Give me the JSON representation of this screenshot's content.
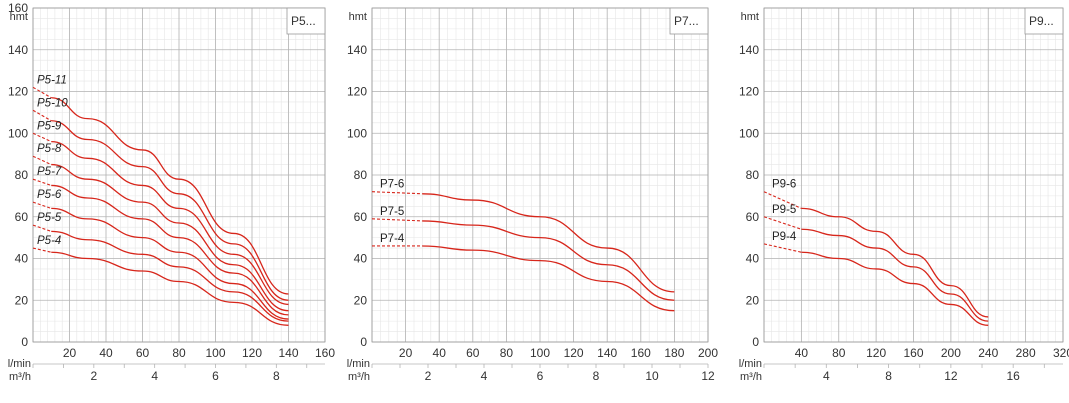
{
  "chart_data": [
    {
      "type": "line",
      "title": "P5...",
      "ylabel": "hmt",
      "ylim": [
        0,
        160
      ],
      "yticks": [
        0,
        20,
        40,
        60,
        80,
        100,
        120,
        140,
        160
      ],
      "x_primary": {
        "label": "l/min",
        "lim": [
          0,
          160
        ],
        "ticks": [
          20,
          40,
          60,
          80,
          100,
          120,
          140,
          160
        ]
      },
      "x_secondary": {
        "label": "m³/h",
        "lim": [
          0,
          9.6
        ],
        "ticks": [
          2,
          4,
          6,
          8
        ]
      },
      "italic_labels": true,
      "series": [
        {
          "name": "P5-11",
          "points": [
            [
              0,
              122
            ],
            [
              10,
              117
            ],
            [
              30,
              107
            ],
            [
              60,
              92
            ],
            [
              80,
              78
            ],
            [
              110,
              52
            ],
            [
              140,
              23
            ]
          ]
        },
        {
          "name": "P5-10",
          "points": [
            [
              0,
              111
            ],
            [
              10,
              106
            ],
            [
              30,
              97
            ],
            [
              60,
              84
            ],
            [
              80,
              71
            ],
            [
              110,
              47
            ],
            [
              140,
              20
            ]
          ]
        },
        {
          "name": "P5-9",
          "points": [
            [
              0,
              100
            ],
            [
              10,
              96
            ],
            [
              30,
              88
            ],
            [
              60,
              75
            ],
            [
              80,
              64
            ],
            [
              110,
              42
            ],
            [
              140,
              18
            ]
          ]
        },
        {
          "name": "P5-8",
          "points": [
            [
              0,
              89
            ],
            [
              10,
              85
            ],
            [
              30,
              78
            ],
            [
              60,
              67
            ],
            [
              80,
              57
            ],
            [
              110,
              37
            ],
            [
              140,
              15
            ]
          ]
        },
        {
          "name": "P5-7",
          "points": [
            [
              0,
              78
            ],
            [
              10,
              75
            ],
            [
              30,
              69
            ],
            [
              60,
              59
            ],
            [
              80,
              50
            ],
            [
              110,
              33
            ],
            [
              140,
              13
            ]
          ]
        },
        {
          "name": "P5-6",
          "points": [
            [
              0,
              67
            ],
            [
              10,
              64
            ],
            [
              30,
              59
            ],
            [
              60,
              50
            ],
            [
              80,
              43
            ],
            [
              110,
              28
            ],
            [
              140,
              11
            ]
          ]
        },
        {
          "name": "P5-5",
          "points": [
            [
              0,
              56
            ],
            [
              10,
              53
            ],
            [
              30,
              49
            ],
            [
              60,
              42
            ],
            [
              80,
              36
            ],
            [
              110,
              24
            ],
            [
              140,
              10
            ]
          ]
        },
        {
          "name": "P5-4",
          "points": [
            [
              0,
              45
            ],
            [
              10,
              43
            ],
            [
              30,
              40
            ],
            [
              60,
              34
            ],
            [
              80,
              29
            ],
            [
              110,
              19
            ],
            [
              140,
              8
            ]
          ]
        }
      ]
    },
    {
      "type": "line",
      "title": "P7...",
      "ylabel": "hmt",
      "ylim": [
        0,
        160
      ],
      "yticks": [
        0,
        20,
        40,
        60,
        80,
        100,
        120,
        140
      ],
      "x_primary": {
        "label": "l/min",
        "lim": [
          0,
          200
        ],
        "ticks": [
          20,
          40,
          60,
          80,
          100,
          120,
          140,
          160,
          180,
          200
        ]
      },
      "x_secondary": {
        "label": "m³/h",
        "lim": [
          0,
          12
        ],
        "ticks": [
          2,
          4,
          6,
          8,
          10,
          12
        ]
      },
      "italic_labels": false,
      "series": [
        {
          "name": "P7-6",
          "points": [
            [
              0,
              72
            ],
            [
              30,
              71
            ],
            [
              60,
              68
            ],
            [
              100,
              60
            ],
            [
              140,
              45
            ],
            [
              180,
              24
            ]
          ]
        },
        {
          "name": "P7-5",
          "points": [
            [
              0,
              59
            ],
            [
              30,
              58
            ],
            [
              60,
              56
            ],
            [
              100,
              50
            ],
            [
              140,
              37
            ],
            [
              180,
              20
            ]
          ]
        },
        {
          "name": "P7-4",
          "points": [
            [
              0,
              46
            ],
            [
              30,
              46
            ],
            [
              60,
              44
            ],
            [
              100,
              39
            ],
            [
              140,
              29
            ],
            [
              180,
              15
            ]
          ]
        }
      ]
    },
    {
      "type": "line",
      "title": "P9...",
      "ylabel": "hmt",
      "ylim": [
        0,
        160
      ],
      "yticks": [
        0,
        20,
        40,
        60,
        80,
        100,
        120,
        140
      ],
      "x_primary": {
        "label": "l/min",
        "lim": [
          0,
          320
        ],
        "ticks": [
          40,
          80,
          120,
          160,
          200,
          240,
          280,
          320
        ]
      },
      "x_secondary": {
        "label": "m³/h",
        "lim": [
          0,
          19.2
        ],
        "ticks": [
          4,
          8,
          12,
          16
        ]
      },
      "italic_labels": false,
      "series": [
        {
          "name": "P9-6",
          "points": [
            [
              0,
              72
            ],
            [
              40,
              64
            ],
            [
              80,
              60
            ],
            [
              120,
              53
            ],
            [
              160,
              42
            ],
            [
              200,
              27
            ],
            [
              240,
              12
            ]
          ]
        },
        {
          "name": "P9-5",
          "points": [
            [
              0,
              60
            ],
            [
              40,
              54
            ],
            [
              80,
              51
            ],
            [
              120,
              45
            ],
            [
              160,
              36
            ],
            [
              200,
              23
            ],
            [
              240,
              10
            ]
          ]
        },
        {
          "name": "P9-4",
          "points": [
            [
              0,
              47
            ],
            [
              40,
              43
            ],
            [
              80,
              40
            ],
            [
              120,
              35
            ],
            [
              160,
              28
            ],
            [
              200,
              18
            ],
            [
              240,
              8
            ]
          ]
        }
      ]
    }
  ]
}
